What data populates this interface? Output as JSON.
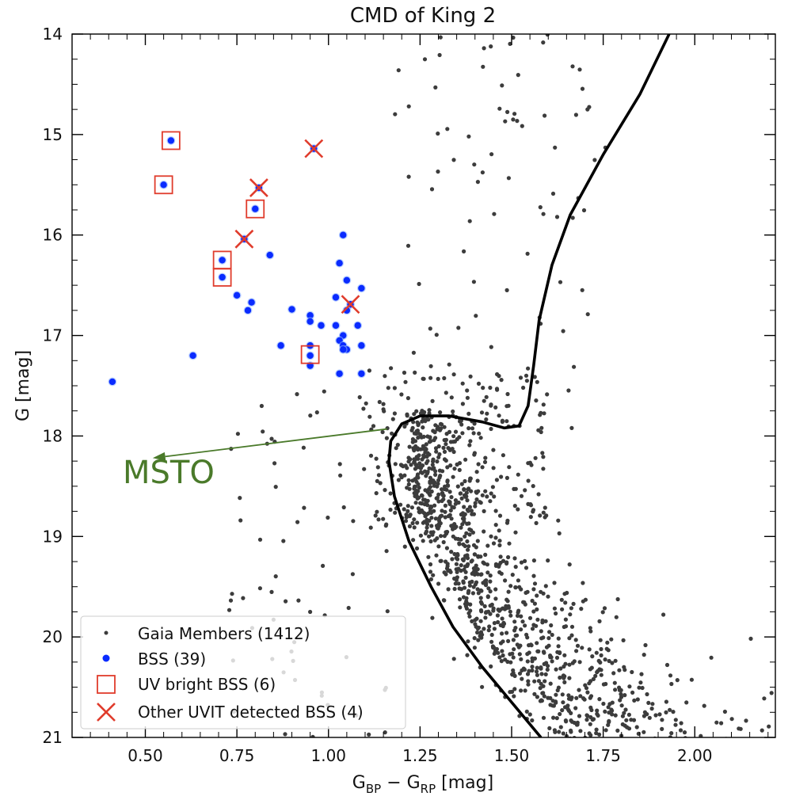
{
  "chart_data": {
    "type": "scatter",
    "title": "CMD of King 2",
    "xlabel": {
      "main": "G",
      "sub1": "BP",
      "mid": " −  G",
      "sub2": "RP",
      "unit": " [mag]"
    },
    "ylabel": "G [mag]",
    "xlim": [
      0.3,
      2.22
    ],
    "ylim": [
      21,
      14
    ],
    "y_inverted": true,
    "x_ticks": [
      "0.50",
      "0.75",
      "1.00",
      "1.25",
      "1.50",
      "1.75",
      "2.00"
    ],
    "y_ticks": [
      "14",
      "15",
      "16",
      "17",
      "18",
      "19",
      "20",
      "21"
    ],
    "grid": false,
    "legend_position": "lower-left",
    "colors": {
      "members": "#3c3c3c",
      "bss": "#0a2bff",
      "uv_bright": "#e03c2c",
      "uvit": "#e03c2c",
      "isochrone": "#000000",
      "annotation": "#4a7a2a"
    },
    "annotation": {
      "text": "MSTO",
      "from": [
        1.16,
        17.93
      ],
      "to": [
        0.52,
        18.22
      ]
    },
    "isochrone": [
      [
        1.58,
        21.0
      ],
      [
        1.5,
        20.65
      ],
      [
        1.42,
        20.3
      ],
      [
        1.34,
        19.9
      ],
      [
        1.28,
        19.5
      ],
      [
        1.22,
        19.05
      ],
      [
        1.18,
        18.6
      ],
      [
        1.165,
        18.25
      ],
      [
        1.17,
        18.05
      ],
      [
        1.2,
        17.88
      ],
      [
        1.25,
        17.8
      ],
      [
        1.33,
        17.8
      ],
      [
        1.42,
        17.86
      ],
      [
        1.48,
        17.92
      ],
      [
        1.52,
        17.9
      ],
      [
        1.545,
        17.7
      ],
      [
        1.56,
        17.3
      ],
      [
        1.575,
        16.85
      ],
      [
        1.61,
        16.3
      ],
      [
        1.66,
        15.8
      ],
      [
        1.75,
        15.2
      ],
      [
        1.85,
        14.6
      ],
      [
        1.93,
        14.0
      ]
    ],
    "series": [
      {
        "name": "Gaia Members (1412)",
        "count": 1412,
        "marker": "dot"
      },
      {
        "name": "BSS (39)",
        "marker": "filled-circle",
        "points": [
          [
            0.57,
            15.06
          ],
          [
            0.55,
            15.5
          ],
          [
            0.81,
            15.53
          ],
          [
            0.96,
            15.14
          ],
          [
            0.8,
            15.74
          ],
          [
            0.77,
            16.04
          ],
          [
            0.71,
            16.25
          ],
          [
            0.71,
            16.42
          ],
          [
            0.84,
            16.2
          ],
          [
            1.04,
            16.0
          ],
          [
            1.03,
            16.28
          ],
          [
            1.05,
            16.45
          ],
          [
            1.09,
            16.53
          ],
          [
            0.75,
            16.6
          ],
          [
            0.79,
            16.67
          ],
          [
            0.78,
            16.75
          ],
          [
            0.9,
            16.74
          ],
          [
            1.02,
            16.62
          ],
          [
            1.06,
            16.69
          ],
          [
            1.05,
            16.75
          ],
          [
            0.95,
            16.8
          ],
          [
            0.95,
            16.86
          ],
          [
            0.98,
            16.9
          ],
          [
            1.02,
            16.9
          ],
          [
            1.08,
            16.9
          ],
          [
            1.04,
            17.0
          ],
          [
            1.03,
            17.05
          ],
          [
            0.63,
            17.2
          ],
          [
            0.87,
            17.1
          ],
          [
            0.95,
            17.1
          ],
          [
            1.04,
            17.1
          ],
          [
            1.05,
            17.14
          ],
          [
            1.09,
            17.1
          ],
          [
            1.04,
            17.14
          ],
          [
            0.95,
            17.2
          ],
          [
            0.95,
            17.3
          ],
          [
            1.03,
            17.38
          ],
          [
            1.09,
            17.38
          ],
          [
            0.41,
            17.46
          ]
        ]
      },
      {
        "name": "UV bright BSS (6)",
        "marker": "open-square",
        "points": [
          [
            0.57,
            15.06
          ],
          [
            0.55,
            15.5
          ],
          [
            0.8,
            15.74
          ],
          [
            0.71,
            16.25
          ],
          [
            0.71,
            16.42
          ],
          [
            0.95,
            17.19
          ]
        ]
      },
      {
        "name": "Other UVIT detected BSS (4)",
        "marker": "x",
        "points": [
          [
            0.96,
            15.14
          ],
          [
            0.81,
            15.53
          ],
          [
            0.77,
            16.04
          ],
          [
            1.06,
            16.69
          ]
        ]
      }
    ]
  }
}
